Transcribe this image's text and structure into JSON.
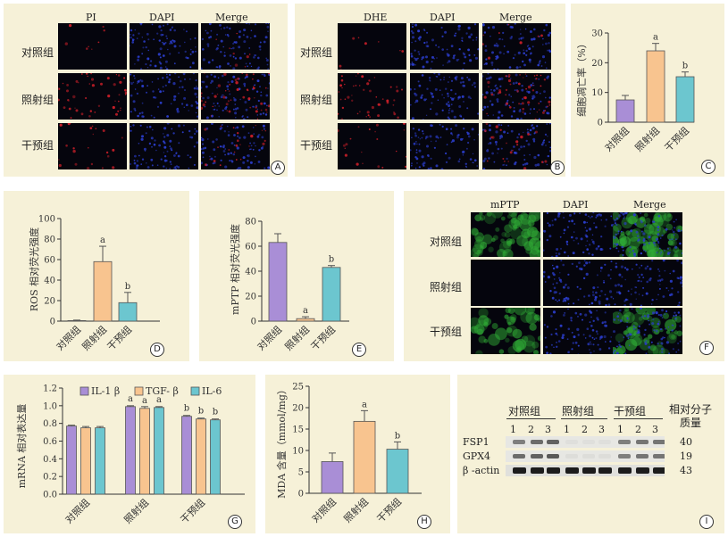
{
  "panels": {
    "A": {
      "letter": "A",
      "columns": [
        "PI",
        "DAPI",
        "Merge"
      ],
      "rows": [
        "对照组",
        "照射组",
        "干预组"
      ]
    },
    "B": {
      "letter": "B",
      "columns": [
        "DHE",
        "DAPI",
        "Merge"
      ],
      "rows": [
        "对照组",
        "照射组",
        "干预组"
      ]
    },
    "F": {
      "letter": "F",
      "columns": [
        "mPTP",
        "DAPI",
        "Merge"
      ],
      "rows": [
        "对照组",
        "照射组",
        "干预组"
      ]
    },
    "I": {
      "letter": "I",
      "groups": [
        "对照组",
        "照射组",
        "干预组"
      ],
      "lanes": [
        "1",
        "2",
        "3"
      ],
      "proteins": [
        "FSP1",
        "GPX4",
        "β -actin"
      ],
      "mw_header": "相对分子质量",
      "mw_values": [
        "40",
        "19",
        "43"
      ]
    }
  },
  "chart_data": [
    {
      "panel": "C",
      "letter": "C",
      "type": "bar",
      "categories": [
        "对照组",
        "照射组",
        "干预组"
      ],
      "values": [
        7.5,
        24,
        15.3
      ],
      "errors": [
        1.5,
        2.5,
        1.6
      ],
      "ylabel": "细胞凋亡率（%）",
      "ylim": [
        0,
        30
      ],
      "yticks": [
        "0",
        "10",
        "20",
        "30"
      ],
      "sig": [
        "",
        "a",
        "b"
      ]
    },
    {
      "panel": "D",
      "letter": "D",
      "type": "bar",
      "categories": [
        "对照组",
        "照射组",
        "干预组"
      ],
      "values": [
        0.5,
        58,
        18
      ],
      "errors": [
        0.5,
        15,
        10
      ],
      "ylabel": "ROS 相对荧光强度",
      "ylim": [
        0,
        100
      ],
      "yticks": [
        "0",
        "20",
        "40",
        "60",
        "80",
        "100"
      ],
      "sig": [
        "",
        "a",
        "b"
      ]
    },
    {
      "panel": "E",
      "letter": "E",
      "type": "bar",
      "categories": [
        "对照组",
        "照射组",
        "干预组"
      ],
      "values": [
        63,
        2,
        43
      ],
      "errors": [
        7,
        1.5,
        1.5
      ],
      "ylabel": "mPTP 相对荧光强度",
      "ylim": [
        0,
        80
      ],
      "yticks": [
        "0",
        "20",
        "40",
        "60",
        "80"
      ],
      "sig": [
        "",
        "a",
        "b"
      ]
    },
    {
      "panel": "G",
      "letter": "G",
      "type": "bar",
      "categories": [
        "对照组",
        "照射组",
        "干预组"
      ],
      "series": [
        {
          "name": "IL-1 β",
          "values": [
            0.77,
            0.99,
            0.88
          ]
        },
        {
          "name": "TGF- β",
          "values": [
            0.75,
            0.97,
            0.85
          ]
        },
        {
          "name": "IL-6",
          "values": [
            0.75,
            0.98,
            0.84
          ]
        }
      ],
      "errors": [
        [
          0.01,
          0.01,
          0.01
        ],
        [
          0.015,
          0.02,
          0.01
        ],
        [
          0.015,
          0.01,
          0.01
        ]
      ],
      "ylabel": "mRNA 相对表达量",
      "ylim": [
        0,
        1.2
      ],
      "yticks": [
        "0.0",
        "0.2",
        "0.4",
        "0.6",
        "0.8",
        "1.0",
        "1.2"
      ],
      "sig": [
        [
          "",
          "",
          ""
        ],
        [
          "a",
          "a",
          "a"
        ],
        [
          "b",
          "b",
          "b"
        ]
      ],
      "legend": "top"
    },
    {
      "panel": "H",
      "letter": "H",
      "type": "bar",
      "categories": [
        "对照组",
        "照射组",
        "干预组"
      ],
      "values": [
        7.4,
        16.8,
        10.3
      ],
      "errors": [
        2,
        2.5,
        1.7
      ],
      "ylabel": "MDA 含量（mmol/mg）",
      "ylim": [
        0,
        25
      ],
      "yticks": [
        "0",
        "5",
        "10",
        "15",
        "20",
        "25"
      ],
      "sig": [
        "",
        "a",
        "b"
      ]
    }
  ],
  "colors": {
    "bg": "#f6f1d8",
    "bar1": "#a98ed6",
    "bar2": "#f8c48f",
    "bar3": "#6cc6cf",
    "red": "#d4202a",
    "blue": "#2a3cc8",
    "green": "#2faa35"
  }
}
